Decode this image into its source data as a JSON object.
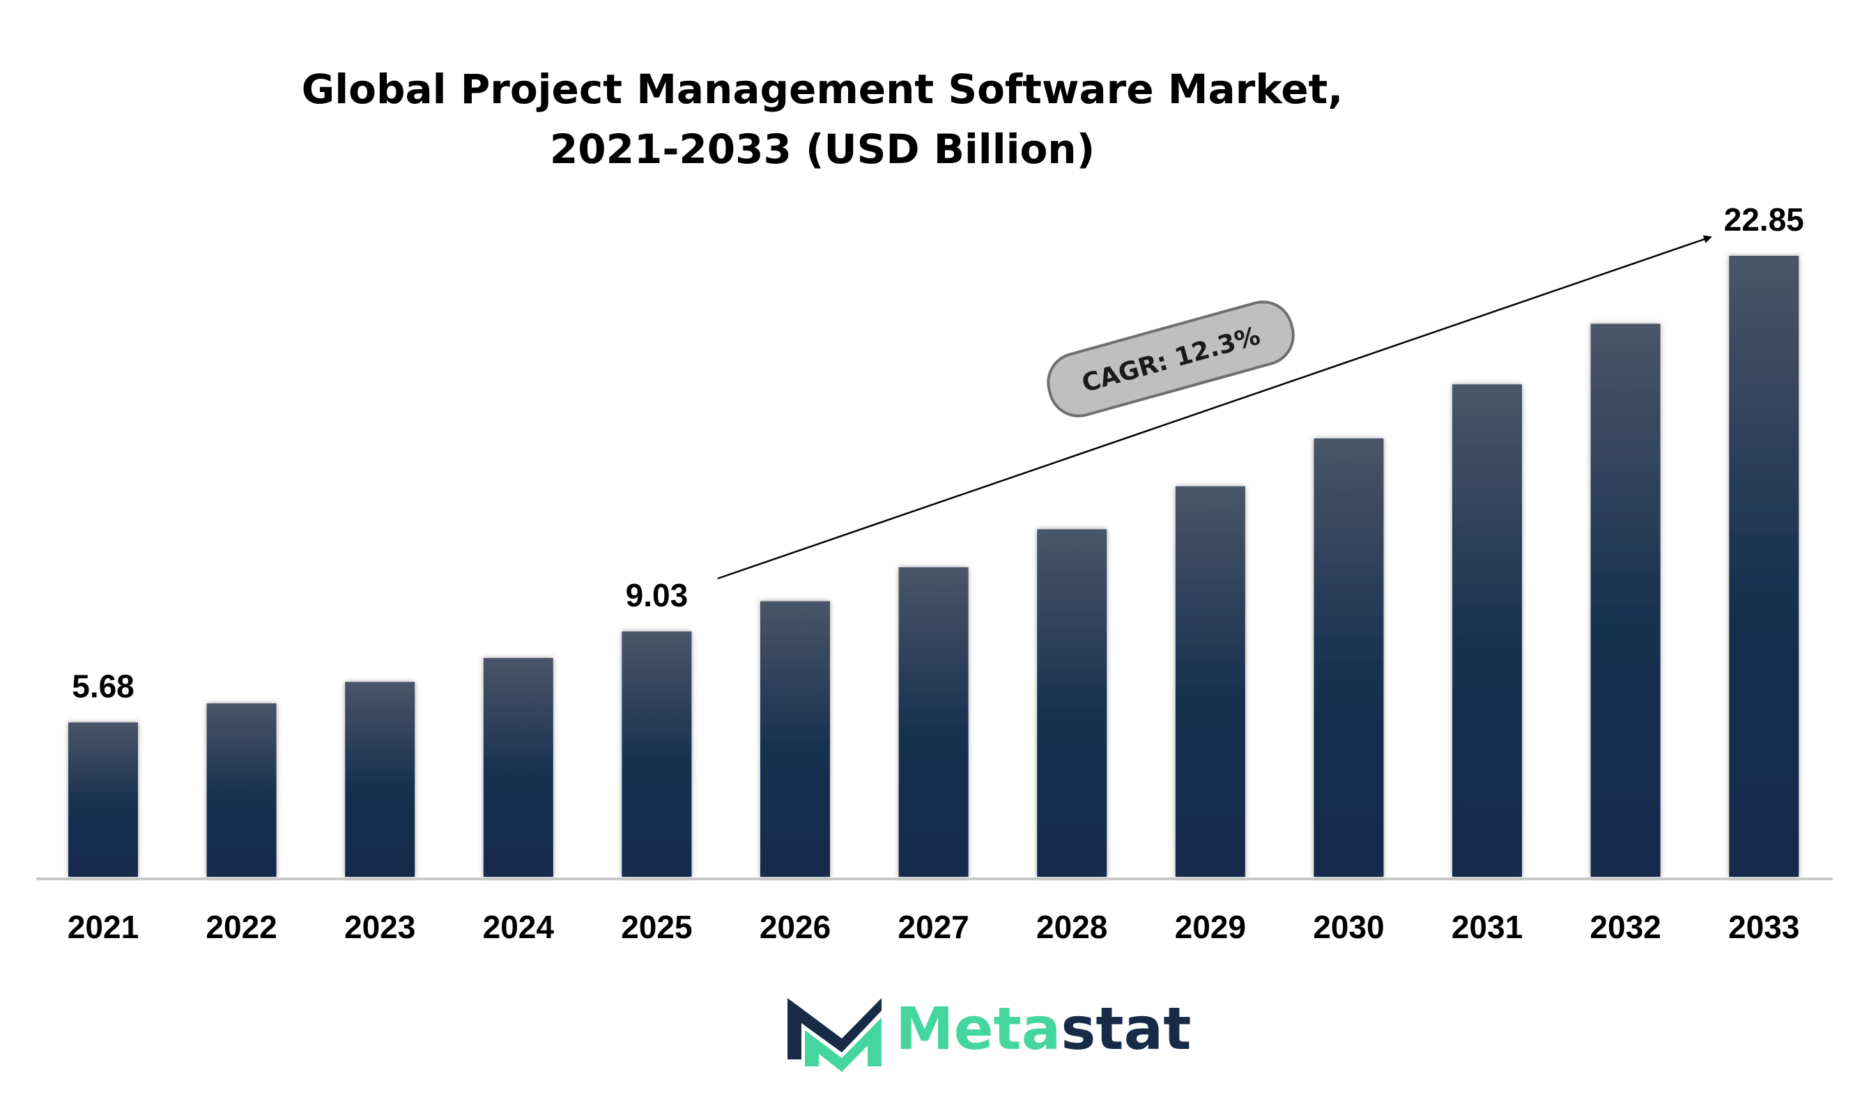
{
  "chart_data": {
    "type": "bar",
    "title": "Global Project Management Software Market, 2021-2033 (USD Billion)",
    "categories": [
      "2021",
      "2022",
      "2023",
      "2024",
      "2025",
      "2026",
      "2027",
      "2028",
      "2029",
      "2030",
      "2031",
      "2032",
      "2033"
    ],
    "values": [
      5.68,
      6.38,
      7.17,
      8.05,
      9.03,
      10.14,
      11.39,
      12.79,
      14.37,
      16.13,
      18.12,
      20.35,
      22.85
    ],
    "data_labels": [
      {
        "category": "2021",
        "text": "5.68"
      },
      {
        "category": "2025",
        "text": "9.03"
      },
      {
        "category": "2033",
        "text": "22.85"
      }
    ],
    "annotation": "CAGR: 12.3%",
    "ylim": [
      0,
      22.85
    ],
    "grid": false,
    "legend": "none",
    "colors": {
      "bar_top": "#4a5568",
      "bar_bottom": "#142b4c",
      "baseline": "#c8c8c8",
      "callout_fill": "#bfbfbf",
      "callout_stroke": "#6f6f6f"
    }
  },
  "logo": {
    "text_main": "Meta",
    "text_accent": "stat",
    "icon": "metastat-m-logo-icon",
    "colors": {
      "mint": "#45d6a0",
      "navy": "#172b47"
    }
  }
}
